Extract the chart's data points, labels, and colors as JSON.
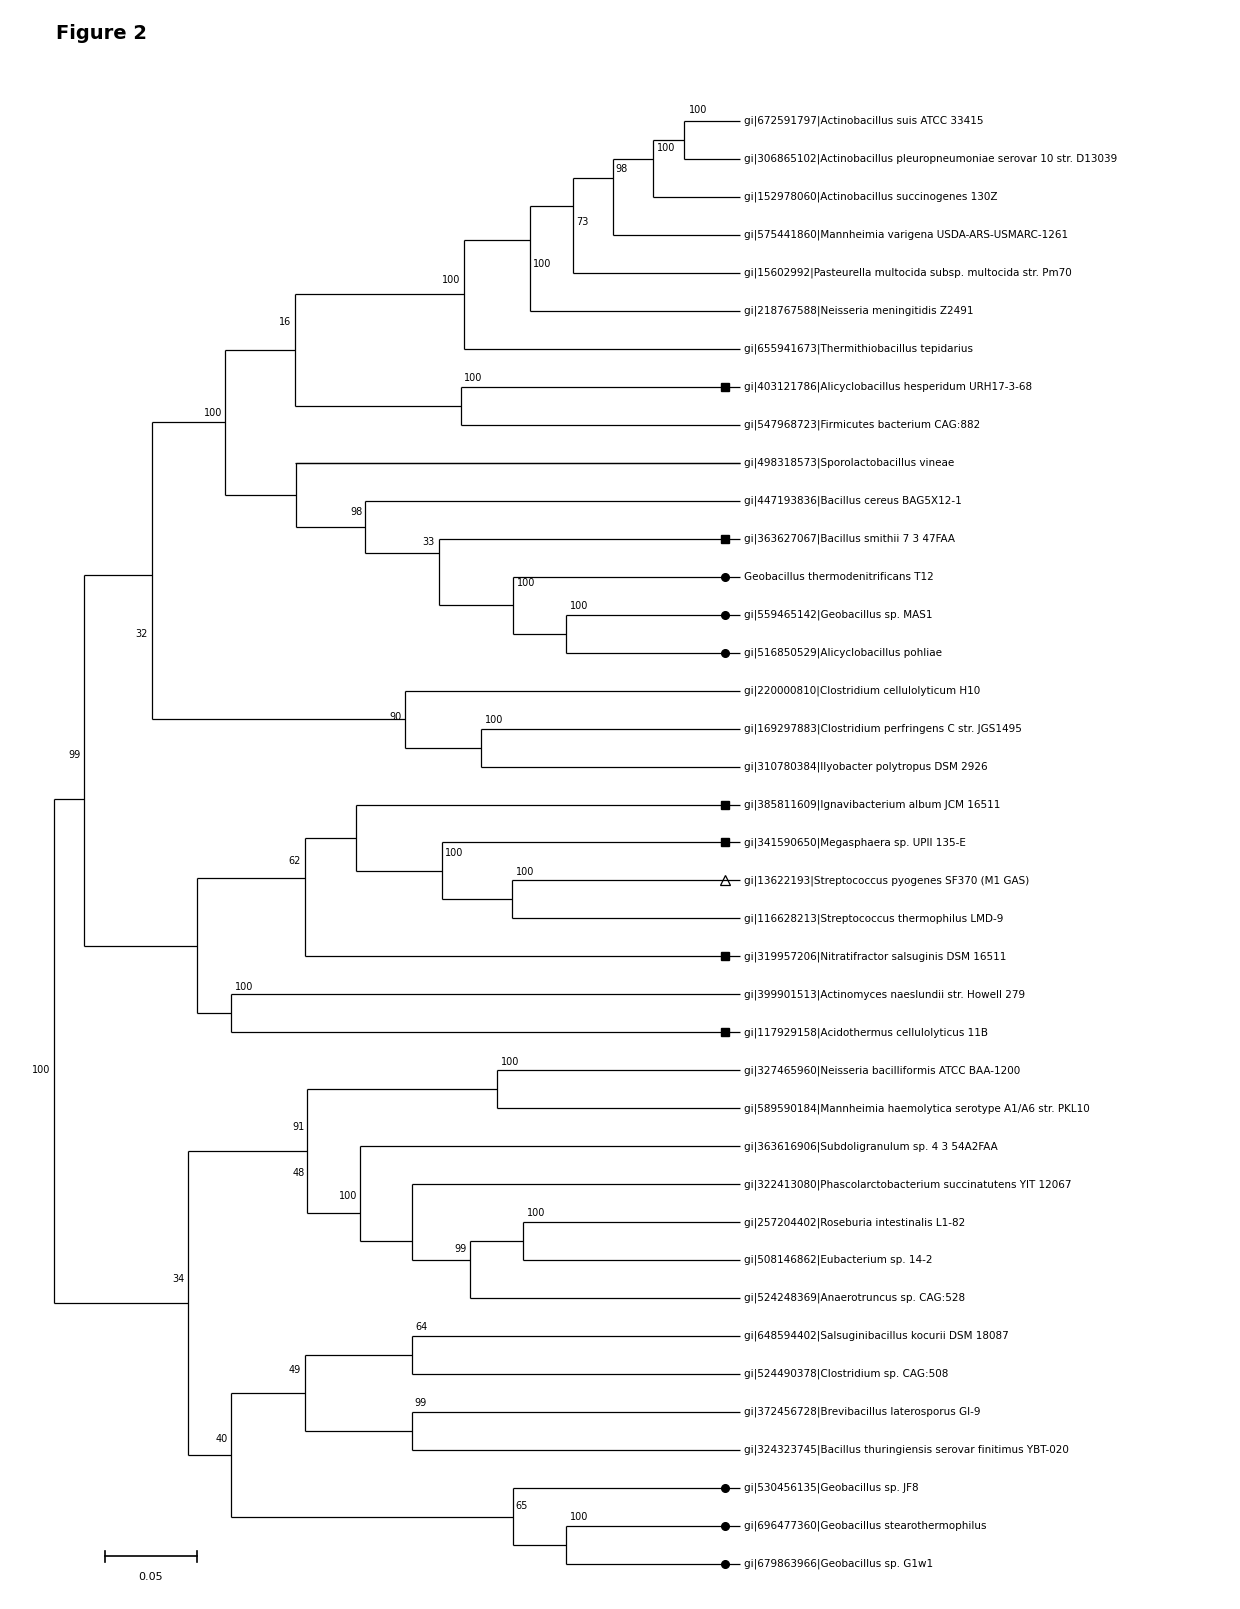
{
  "figure_title": "Figure 2",
  "scale_bar": 0.05,
  "taxa": [
    {
      "label": "gi|672591797|Actinobacillus suis ATCC 33415",
      "marker": null
    },
    {
      "label": "gi|306865102|Actinobacillus pleuropneumoniae serovar 10 str. D13039",
      "marker": null
    },
    {
      "label": "gi|152978060|Actinobacillus succinogenes 130Z",
      "marker": null
    },
    {
      "label": "gi|575441860|Mannheimia varigena USDA-ARS-USMARC-1261",
      "marker": null
    },
    {
      "label": "gi|15602992|Pasteurella multocida subsp. multocida str. Pm70",
      "marker": null
    },
    {
      "label": "gi|218767588|Neisseria meningitidis Z2491",
      "marker": null
    },
    {
      "label": "gi|655941673|Thermithiobacillus tepidarius",
      "marker": null
    },
    {
      "label": "gi|403121786|Alicyclobacillus hesperidum URH17-3-68",
      "marker": "square"
    },
    {
      "label": "gi|547968723|Firmicutes bacterium CAG:882",
      "marker": null
    },
    {
      "label": "gi|498318573|Sporolactobacillus vineae",
      "marker": null
    },
    {
      "label": "gi|447193836|Bacillus cereus BAG5X12-1",
      "marker": null
    },
    {
      "label": "gi|363627067|Bacillus smithii 7 3 47FAA",
      "marker": "square"
    },
    {
      "label": "Geobacillus thermodenitrificans T12",
      "marker": "circle"
    },
    {
      "label": "gi|559465142|Geobacillus sp. MAS1",
      "marker": "circle"
    },
    {
      "label": "gi|516850529|Alicyclobacillus pohliae",
      "marker": "circle"
    },
    {
      "label": "gi|220000810|Clostridium cellulolyticum H10",
      "marker": null
    },
    {
      "label": "gi|169297883|Clostridium perfringens C str. JGS1495",
      "marker": null
    },
    {
      "label": "gi|310780384|Ilyobacter polytropus DSM 2926",
      "marker": null
    },
    {
      "label": "gi|385811609|Ignavibacterium album JCM 16511",
      "marker": "square"
    },
    {
      "label": "gi|341590650|Megasphaera sp. UPII 135-E",
      "marker": "square"
    },
    {
      "label": "gi|13622193|Streptococcus pyogenes SF370 (M1 GAS)",
      "marker": "triangle"
    },
    {
      "label": "gi|116628213|Streptococcus thermophilus LMD-9",
      "marker": null
    },
    {
      "label": "gi|319957206|Nitratifractor salsuginis DSM 16511",
      "marker": "square"
    },
    {
      "label": "gi|399901513|Actinomyces naeslundii str. Howell 279",
      "marker": null
    },
    {
      "label": "gi|117929158|Acidothermus cellulolyticus 11B",
      "marker": "square"
    },
    {
      "label": "gi|327465960|Neisseria bacilliformis ATCC BAA-1200",
      "marker": null
    },
    {
      "label": "gi|589590184|Mannheimia haemolytica serotype A1/A6 str. PKL10",
      "marker": null
    },
    {
      "label": "gi|363616906|Subdoligranulum sp. 4 3 54A2FAA",
      "marker": null
    },
    {
      "label": "gi|322413080|Phascolarctobacterium succinatutens YIT 12067",
      "marker": null
    },
    {
      "label": "gi|257204402|Roseburia intestinalis L1-82",
      "marker": null
    },
    {
      "label": "gi|508146862|Eubacterium sp. 14-2",
      "marker": null
    },
    {
      "label": "gi|524248369|Anaerotruncus sp. CAG:528",
      "marker": null
    },
    {
      "label": "gi|648594402|Salsuginibacillus kocurii DSM 18087",
      "marker": null
    },
    {
      "label": "gi|524490378|Clostridium sp. CAG:508",
      "marker": null
    },
    {
      "label": "gi|372456728|Brevibacillus laterosporus GI-9",
      "marker": null
    },
    {
      "label": "gi|324323745|Bacillus thuringiensis serovar finitimus YBT-020",
      "marker": null
    },
    {
      "label": "gi|530456135|Geobacillus sp. JF8",
      "marker": "circle"
    },
    {
      "label": "gi|696477360|Geobacillus stearothermophilus",
      "marker": "circle"
    },
    {
      "label": "gi|679863966|Geobacillus sp. G1w1",
      "marker": "circle"
    }
  ]
}
